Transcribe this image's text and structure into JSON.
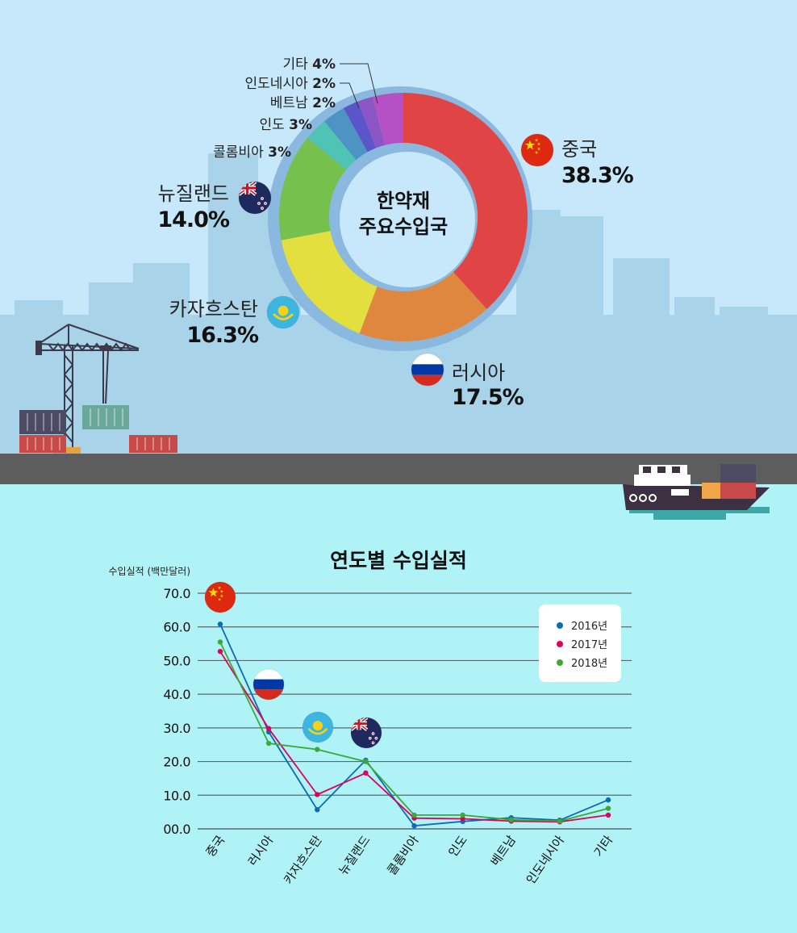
{
  "chart_data": [
    {
      "type": "pie",
      "center_label_line1": "한약재",
      "center_label_line2": "주요수입국",
      "slices": [
        {
          "label": "중국",
          "value": 38.3,
          "value_text": "38.3%",
          "color": "#e04444",
          "icon": "china-flag-icon"
        },
        {
          "label": "러시아",
          "value": 17.5,
          "value_text": "17.5%",
          "color": "#e0873f",
          "icon": "russia-flag-icon"
        },
        {
          "label": "카자흐스탄",
          "value": 16.3,
          "value_text": "16.3%",
          "color": "#e2df3e",
          "icon": "kazakhstan-flag-icon"
        },
        {
          "label": "뉴질랜드",
          "value": 14.0,
          "value_text": "14.0%",
          "color": "#76c04e",
          "icon": "new-zealand-flag-icon"
        },
        {
          "label": "콜롬비아",
          "value": 3,
          "value_text": "3%",
          "color": "#4fc4b4"
        },
        {
          "label": "인도",
          "value": 3,
          "value_text": "3%",
          "color": "#4d94c4"
        },
        {
          "label": "베트남",
          "value": 2,
          "value_text": "2%",
          "color": "#5a55c8"
        },
        {
          "label": "인도네시아",
          "value": 2,
          "value_text": "2%",
          "color": "#8a55c4"
        },
        {
          "label": "기타",
          "value": 4,
          "value_text": "4%",
          "color": "#b451c4"
        }
      ]
    },
    {
      "type": "line",
      "title": "연도별 수입실적",
      "ylabel": "수입실적 (백만달러)",
      "ylim": [
        0,
        70
      ],
      "yticks": [
        "00.0",
        "10.0",
        "20.0",
        "30.0",
        "40.0",
        "50.0",
        "60.0",
        "70.0"
      ],
      "categories": [
        "중국",
        "러시아",
        "카자흐스탄",
        "뉴질랜드",
        "콜롬비아",
        "인도",
        "베트남",
        "인도네시아",
        "기타"
      ],
      "legend_position": "top-right",
      "grid": true,
      "series": [
        {
          "name": "2016년",
          "color": "#0a6cb4",
          "values": [
            60.8,
            28.8,
            5.7,
            20.4,
            0.9,
            2.2,
            3.3,
            2.6,
            8.6
          ]
        },
        {
          "name": "2017년",
          "color": "#e0005a",
          "values": [
            52.7,
            29.8,
            10.2,
            16.6,
            3.2,
            3.0,
            2.3,
            2.1,
            4.1
          ]
        },
        {
          "name": "2018년",
          "color": "#3aaa35",
          "values": [
            55.5,
            25.4,
            23.6,
            20.0,
            4.1,
            4.1,
            2.7,
            2.3,
            6.1
          ]
        }
      ]
    }
  ]
}
